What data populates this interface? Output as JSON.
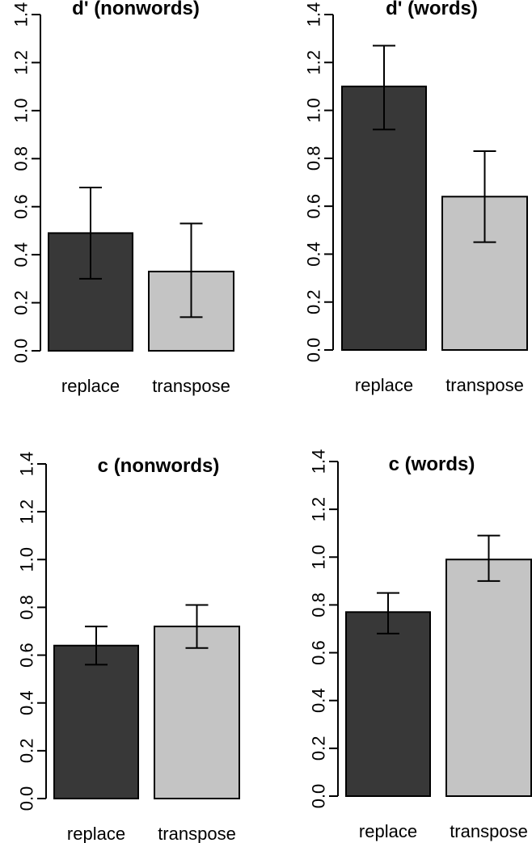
{
  "figure": {
    "colors": {
      "replace": "#383838",
      "transpose": "#c4c4c4",
      "axis": "#000000"
    }
  },
  "chart_data": [
    {
      "type": "bar",
      "title": "d' (nonwords)",
      "categories": [
        "replace",
        "transpose"
      ],
      "values": [
        0.49,
        0.33
      ],
      "error_low": [
        0.3,
        0.14
      ],
      "error_high": [
        0.68,
        0.53
      ],
      "ylim": [
        0,
        1.4
      ],
      "yticks": [
        "0.0",
        "0.2",
        "0.4",
        "0.6",
        "0.8",
        "1.0",
        "1.2",
        "1.4"
      ],
      "xlabel": "",
      "ylabel": ""
    },
    {
      "type": "bar",
      "title": "d' (words)",
      "categories": [
        "replace",
        "transpose"
      ],
      "values": [
        1.1,
        0.64
      ],
      "error_low": [
        0.92,
        0.45
      ],
      "error_high": [
        1.27,
        0.83
      ],
      "ylim": [
        0,
        1.4
      ],
      "yticks": [
        "0.0",
        "0.2",
        "0.4",
        "0.6",
        "0.8",
        "1.0",
        "1.2",
        "1.4"
      ],
      "xlabel": "",
      "ylabel": ""
    },
    {
      "type": "bar",
      "title": "c (nonwords)",
      "categories": [
        "replace",
        "transpose"
      ],
      "values": [
        0.64,
        0.72
      ],
      "error_low": [
        0.56,
        0.63
      ],
      "error_high": [
        0.72,
        0.81
      ],
      "ylim": [
        0,
        1.4
      ],
      "yticks": [
        "0.0",
        "0.2",
        "0.4",
        "0.6",
        "0.8",
        "1.0",
        "1.2",
        "1.4"
      ],
      "xlabel": "",
      "ylabel": ""
    },
    {
      "type": "bar",
      "title": "c (words)",
      "categories": [
        "replace",
        "transpose"
      ],
      "values": [
        0.77,
        0.99
      ],
      "error_low": [
        0.68,
        0.9
      ],
      "error_high": [
        0.85,
        1.09
      ],
      "ylim": [
        0,
        1.4
      ],
      "yticks": [
        "0.0",
        "0.2",
        "0.4",
        "0.6",
        "0.8",
        "1.0",
        "1.2",
        "1.4"
      ],
      "xlabel": "",
      "ylabel": ""
    }
  ]
}
